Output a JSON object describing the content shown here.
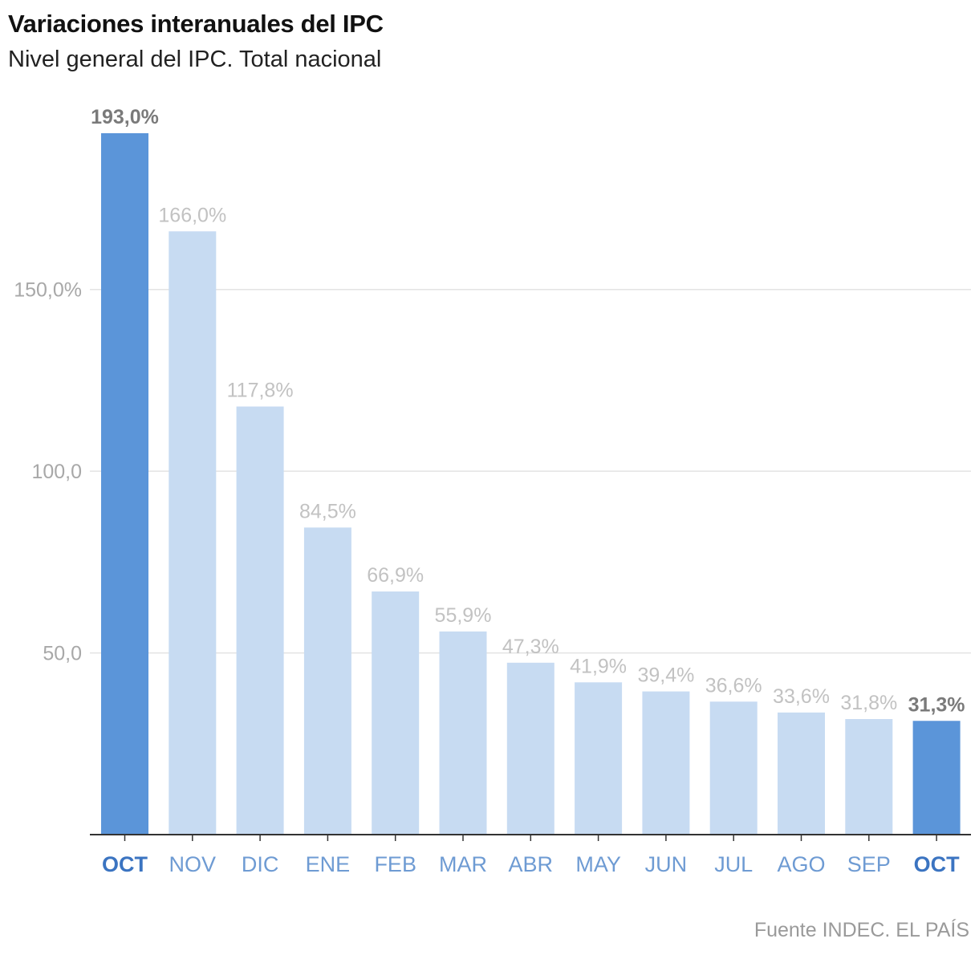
{
  "header": {
    "title": "Variaciones interanuales del IPC",
    "subtitle": "Nivel general del IPC. Total nacional"
  },
  "footer": {
    "source": "Fuente INDEC. EL PAÍS"
  },
  "colors": {
    "highlight_bar": "#5b95d9",
    "bar": "#c7dbf2",
    "grid": "#e3e3e3",
    "axis": "#333333"
  },
  "chart_data": {
    "type": "bar",
    "title": "Variaciones interanuales del IPC",
    "subtitle": "Nivel general del IPC. Total nacional",
    "xlabel": "",
    "ylabel": "",
    "categories": [
      "OCT",
      "NOV",
      "DIC",
      "ENE",
      "FEB",
      "MAR",
      "ABR",
      "MAY",
      "JUN",
      "JUL",
      "AGO",
      "SEP",
      "OCT"
    ],
    "values": [
      193.0,
      166.0,
      117.8,
      84.5,
      66.9,
      55.9,
      47.3,
      41.9,
      39.4,
      36.6,
      33.6,
      31.8,
      31.3
    ],
    "value_labels": [
      "193,0%",
      "166,0%",
      "117,8%",
      "84,5%",
      "66,9%",
      "55,9%",
      "47,3%",
      "41,9%",
      "39,4%",
      "36,6%",
      "33,6%",
      "31,8%",
      "31,3%"
    ],
    "highlighted": [
      true,
      false,
      false,
      false,
      false,
      false,
      false,
      false,
      false,
      false,
      false,
      false,
      true
    ],
    "yticks": [
      50,
      100,
      150
    ],
    "ytick_labels": [
      "50,0",
      "100,0",
      "150,0%"
    ],
    "ylim": [
      0,
      193
    ],
    "grid": true,
    "legend": "none"
  }
}
